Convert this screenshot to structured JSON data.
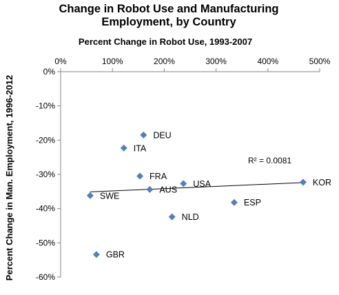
{
  "chart_data": {
    "type": "scatter",
    "title_lines": [
      "Change in Robot Use and Manufacturing",
      "Employment, by Country"
    ],
    "xlabel": "Percent Change in Robot Use, 1993-2007",
    "ylabel": "Percent Change in Man. Employment, 1996-2012",
    "xaxis_position": "top",
    "xlim": [
      0,
      500
    ],
    "ylim": [
      -60,
      0
    ],
    "x_ticks": [
      0,
      100,
      200,
      300,
      400,
      500
    ],
    "x_tick_labels": [
      "0%",
      "100%",
      "200%",
      "300%",
      "400%",
      "500%"
    ],
    "y_ticks": [
      0,
      -10,
      -20,
      -30,
      -40,
      -50,
      -60
    ],
    "y_tick_labels": [
      "0%",
      "-10%",
      "-20%",
      "-30%",
      "-40%",
      "-50%",
      "-60%"
    ],
    "grid": false,
    "marker_color": "#4f81bd",
    "trendline_color": "#000000",
    "points": [
      {
        "label": "DEU",
        "x": 160,
        "y": -18.5
      },
      {
        "label": "ITA",
        "x": 122,
        "y": -22.3
      },
      {
        "label": "FRA",
        "x": 153,
        "y": -30.5
      },
      {
        "label": "AUS",
        "x": 172,
        "y": -34.4
      },
      {
        "label": "USA",
        "x": 237,
        "y": -32.7
      },
      {
        "label": "KOR",
        "x": 468,
        "y": -32.3
      },
      {
        "label": "SWE",
        "x": 57,
        "y": -36.2
      },
      {
        "label": "ESP",
        "x": 335,
        "y": -38.2
      },
      {
        "label": "NLD",
        "x": 215,
        "y": -42.4
      },
      {
        "label": "GBR",
        "x": 69,
        "y": -53.4
      }
    ],
    "trendline": {
      "x": [
        57,
        468
      ],
      "y": [
        -35.1,
        -32.4
      ]
    },
    "annotation": "R² = 0.0081"
  }
}
